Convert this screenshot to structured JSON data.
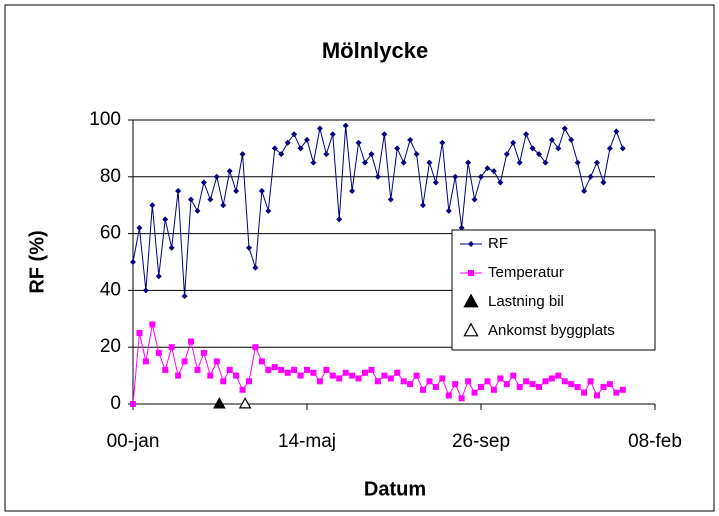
{
  "chart_data": {
    "type": "line",
    "title": "Mölnlycke",
    "x_label": "Datum",
    "y_label": "RF (%)",
    "x": [
      0,
      5,
      10,
      15,
      20,
      25,
      30,
      35,
      40,
      45,
      50,
      55,
      60,
      65,
      70,
      75,
      80,
      85,
      90,
      95,
      100,
      105,
      110,
      115,
      120,
      125,
      130,
      135,
      140,
      145,
      150,
      155,
      160,
      165,
      170,
      175,
      180,
      185,
      190,
      195,
      200,
      205,
      210,
      215,
      220,
      225,
      230,
      235,
      240,
      245,
      250,
      255,
      260,
      265,
      270,
      275,
      280,
      285,
      290,
      295,
      300,
      305,
      310,
      315,
      320,
      325,
      330,
      335,
      340,
      345,
      350,
      355,
      360,
      365,
      370,
      375,
      380
    ],
    "series": [
      {
        "name": "RF",
        "color": "#000080",
        "marker": "diamond",
        "values": [
          50,
          62,
          40,
          70,
          45,
          65,
          55,
          75,
          38,
          72,
          68,
          78,
          72,
          80,
          70,
          82,
          75,
          88,
          55,
          48,
          75,
          68,
          90,
          88,
          92,
          95,
          90,
          93,
          85,
          97,
          88,
          95,
          65,
          98,
          75,
          92,
          85,
          88,
          80,
          95,
          72,
          90,
          85,
          93,
          88,
          70,
          85,
          78,
          92,
          68,
          80,
          62,
          85,
          72,
          80,
          83,
          82,
          78,
          88,
          92,
          85,
          95,
          90,
          88,
          85,
          93,
          90,
          97,
          93,
          85,
          75,
          80,
          85,
          78,
          90,
          96,
          90
        ]
      },
      {
        "name": "Temperatur",
        "color": "#ff00ff",
        "marker": "square",
        "values": [
          0,
          25,
          15,
          28,
          18,
          12,
          20,
          10,
          15,
          22,
          12,
          18,
          10,
          15,
          8,
          12,
          10,
          5,
          8,
          20,
          15,
          12,
          13,
          12,
          11,
          12,
          10,
          12,
          11,
          8,
          12,
          10,
          9,
          11,
          10,
          9,
          11,
          12,
          8,
          10,
          9,
          11,
          8,
          7,
          10,
          5,
          8,
          6,
          9,
          3,
          7,
          2,
          8,
          4,
          6,
          8,
          5,
          9,
          7,
          10,
          6,
          8,
          7,
          6,
          8,
          9,
          10,
          8,
          7,
          6,
          4,
          8,
          3,
          6,
          7,
          4,
          5
        ]
      },
      {
        "name": "Lastning bil",
        "color": "#000000",
        "marker": "triangle-filled",
        "x": [
          67
        ],
        "values": [
          0
        ]
      },
      {
        "name": "Ankomst byggplats",
        "color": "#000000",
        "marker": "triangle-open",
        "x": [
          87
        ],
        "values": [
          0
        ]
      }
    ],
    "xlim": [
      0,
      405
    ],
    "xticks": [
      {
        "value": 0,
        "label": "00-jan"
      },
      {
        "value": 135,
        "label": "14-maj"
      },
      {
        "value": 270,
        "label": "26-sep"
      },
      {
        "value": 405,
        "label": "08-feb"
      }
    ],
    "ylim": [
      0,
      100
    ],
    "yticks": [
      0,
      20,
      40,
      60,
      80,
      100
    ],
    "grid": true,
    "legend": "right"
  }
}
